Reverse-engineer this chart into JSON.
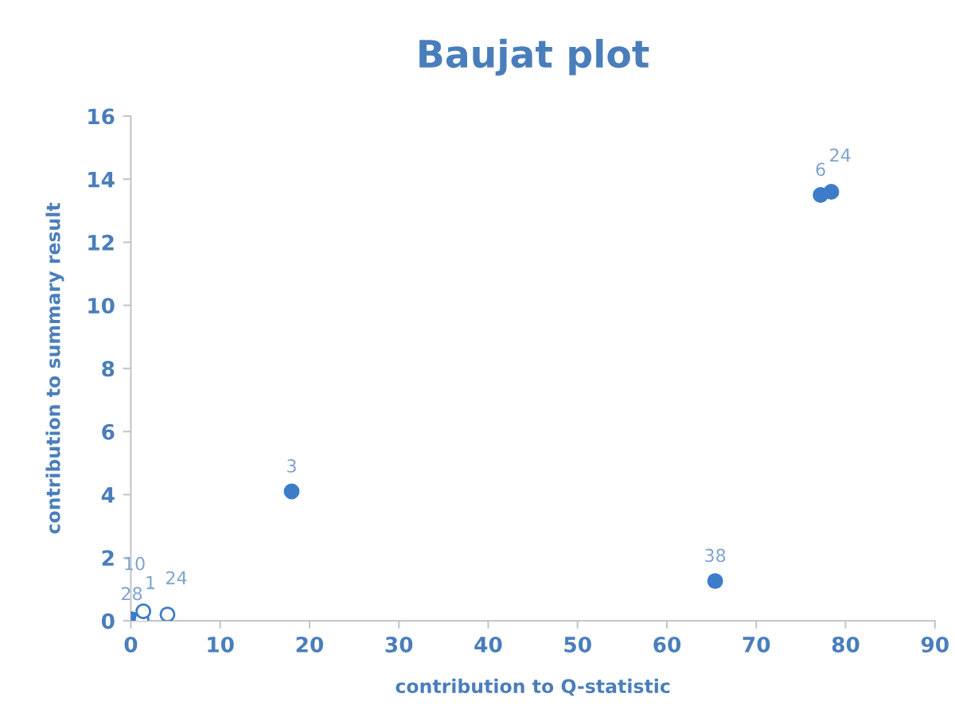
{
  "chart_data": {
    "type": "scatter",
    "title": "Baujat plot",
    "xlabel": "contribution to Q-statistic",
    "ylabel": "contribution to summary result",
    "series": [
      {
        "color": "#3d7cc9",
        "x": [
          0.1,
          18.0,
          65.4,
          77.2,
          78.4
        ],
        "values": [
          0.05,
          4.1,
          1.26,
          13.5,
          13.6
        ]
      },
      {
        "color": "#ffffff",
        "x": [
          1.2,
          1.4,
          4.1
        ],
        "values": [
          0.05,
          0.3,
          0.2
        ]
      }
    ],
    "annotations": [
      {
        "text": "28",
        "x": 0.1,
        "y": 0.05
      },
      {
        "text": "3",
        "x": 18.0,
        "y": 4.1
      },
      {
        "text": "38",
        "x": 65.4,
        "y": 1.26
      },
      {
        "text": "6",
        "x": 77.2,
        "y": 13.5
      },
      {
        "text": "24",
        "x": 78.4,
        "y": 13.6
      },
      {
        "text": "1",
        "x": 1.2,
        "y": 0.05
      },
      {
        "text": "10",
        "x": 1.4,
        "y": 0.3
      },
      {
        "text": "24",
        "x": 4.1,
        "y": 0.2
      }
    ],
    "xlim": [
      0,
      90
    ],
    "xticks": [
      0,
      10,
      20,
      30,
      40,
      50,
      60,
      70,
      80,
      90
    ],
    "ylim": [
      0,
      16
    ],
    "yticks": [
      0,
      2,
      4,
      6,
      8,
      10,
      12,
      14,
      16
    ],
    "grid": false,
    "marker": "circle"
  }
}
